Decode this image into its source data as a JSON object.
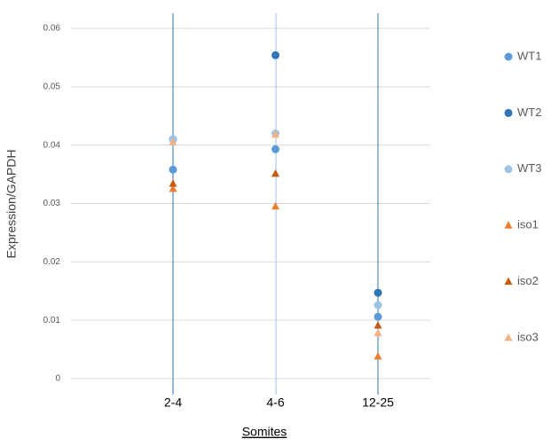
{
  "chart_data": {
    "type": "scatter",
    "x_label": "Somites",
    "y_label": "Expression/GAPDH",
    "categories": [
      "2-4",
      "4-6",
      "12-25"
    ],
    "ylim": [
      0,
      0.06
    ],
    "yticks": [
      0,
      0.01,
      0.02,
      0.03,
      0.04,
      0.05,
      0.06
    ],
    "grid": true,
    "legend": "right",
    "series": [
      {
        "name": "WT1",
        "color": "#5b9bd5",
        "marker": "circle",
        "values": [
          0.0358,
          0.0393,
          0.0106
        ]
      },
      {
        "name": "WT2",
        "color": "#2e75b6",
        "marker": "circle",
        "values": [
          0.041,
          0.0554,
          0.0147
        ]
      },
      {
        "name": "WT3",
        "color": "#9dc3e6",
        "marker": "circle",
        "values": [
          0.041,
          0.042,
          0.0126
        ]
      },
      {
        "name": "iso1",
        "color": "#ed7d31",
        "marker": "triangle",
        "values": [
          0.0325,
          0.0295,
          0.0038
        ]
      },
      {
        "name": "iso2",
        "color": "#c55a11",
        "marker": "triangle",
        "values": [
          0.0334,
          0.0351,
          0.0091
        ]
      },
      {
        "name": "iso3",
        "color": "#f4b183",
        "marker": "triangle",
        "values": [
          0.0405,
          0.0418,
          0.0078
        ]
      }
    ]
  }
}
